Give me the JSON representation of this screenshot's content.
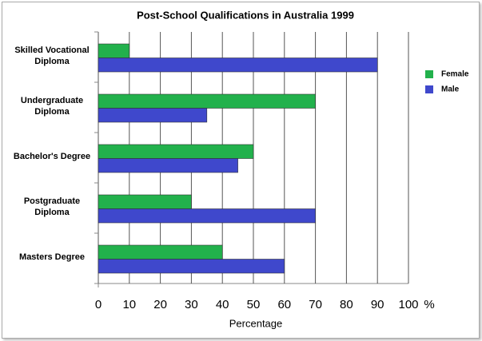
{
  "chart_data": {
    "type": "bar",
    "orientation": "horizontal",
    "title": "Post-School Qualifications in Australia 1999",
    "categories": [
      "Skilled Vocational Diploma",
      "Undergraduate Diploma",
      "Bachelor's Degree",
      "Postgraduate Diploma",
      "Masters Degree"
    ],
    "series": [
      {
        "name": "Female",
        "color": "#22b14c",
        "values": [
          10,
          70,
          50,
          30,
          40
        ]
      },
      {
        "name": "Male",
        "color": "#3f48cc",
        "values": [
          90,
          35,
          45,
          70,
          60
        ]
      }
    ],
    "xlim": [
      0,
      100
    ],
    "xticks": [
      0,
      10,
      20,
      30,
      40,
      50,
      60,
      70,
      80,
      90,
      100
    ],
    "x_unit": "%",
    "xlabel": "Percentage",
    "grid": true,
    "legend": "right"
  }
}
